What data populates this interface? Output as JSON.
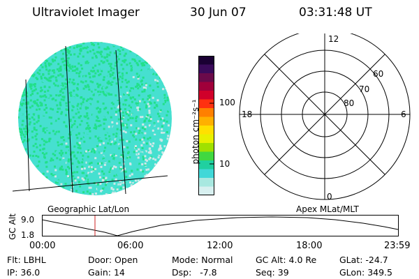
{
  "header": {
    "title": "Ultraviolet Imager",
    "date": "30 Jun 07",
    "time": "03:31:48 UT"
  },
  "image_panel": {
    "label": "Geographic Lat/Lon",
    "dominant_color": "#22e08a",
    "secondary_color": "#46e0d0",
    "background_color": "#cfe8e8"
  },
  "colorbar": {
    "label": "photon cm⁻²s⁻¹",
    "ticks": [
      "100",
      "10"
    ],
    "colors": [
      "#1a0033",
      "#3a0a5a",
      "#6a0a4a",
      "#a0003a",
      "#d0002a",
      "#ff3010",
      "#ff8000",
      "#ffb000",
      "#ffe000",
      "#e8f000",
      "#a0e000",
      "#40d840",
      "#20d0a0",
      "#40d8d8",
      "#a8e8e0",
      "#d8f0f0"
    ]
  },
  "polar_panel": {
    "label": "Apex MLat/MLT",
    "mlt_labels": {
      "top": "12",
      "left": "18",
      "right": "6",
      "bottom": "0"
    },
    "lat_labels": [
      "60",
      "70",
      "80"
    ]
  },
  "altitude_plot": {
    "ylabel": "GC Alt",
    "y_ticks": [
      "9.0",
      "1.8"
    ],
    "x_ticks": [
      "00:00",
      "06:00",
      "12:00",
      "18:00",
      "23:59"
    ],
    "marker_color": "#cc2222"
  },
  "status": {
    "flt_label": "Flt:",
    "flt_value": "LBHL",
    "ip_label": "IP:",
    "ip_value": "36.0",
    "door_label": "Door:",
    "door_value": "Open",
    "gain_label": "Gain:",
    "gain_value": "14",
    "mode_label": "Mode:",
    "mode_value": "Normal",
    "dsp_label": "Dsp:",
    "dsp_value": "-7.8",
    "gcalt_label": "GC Alt:",
    "gcalt_value": "4.0 Re",
    "seq_label": "Seq:",
    "seq_value": "39",
    "glat_label": "GLat:",
    "glat_value": "-24.7",
    "glon_label": "GLon:",
    "glon_value": "349.5"
  }
}
